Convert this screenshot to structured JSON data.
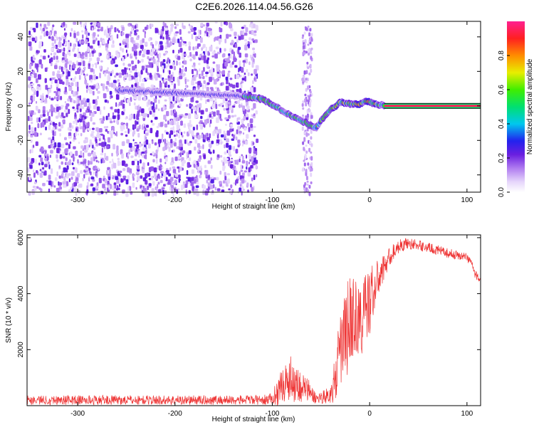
{
  "title": "C2E6.2026.114.04.56.G26",
  "colors": {
    "snr_line": "#ee3333",
    "background": "#ffffff",
    "axis": "#000000"
  },
  "chart_data": [
    {
      "type": "heatmap",
      "xlabel": "Height of straight line (km)",
      "ylabel": "Frequency (Hz)",
      "xlim": [
        -352,
        114
      ],
      "ylim": [
        -50,
        49
      ],
      "xticks": [
        -300,
        -200,
        -100,
        0,
        100
      ],
      "yticks": [
        -40,
        -20,
        0,
        20,
        40
      ],
      "colorbar": {
        "label": "Normalized spectral amplitude",
        "range": [
          0,
          1
        ],
        "ticks": [
          "0.0",
          "0.2",
          "0.4",
          "0.6",
          "0.8"
        ],
        "tick_values": [
          0.0,
          0.2,
          0.4,
          0.6,
          0.8
        ],
        "colormap": "rainbow (white-lavender-violet-blue-cyan-green-yellow-red-magenta)"
      },
      "noise_region": {
        "x_range": [
          -352,
          -117
        ],
        "amplitude_range": [
          0.05,
          0.25
        ]
      },
      "side_streak": {
        "x_range": [
          -70,
          -60
        ],
        "y_range": [
          -50,
          47
        ]
      },
      "ridge": {
        "description": "signal frequency track vs height",
        "points": [
          [
            -260,
            9
          ],
          [
            -220,
            8
          ],
          [
            -180,
            7
          ],
          [
            -140,
            6
          ],
          [
            -130,
            5.5
          ],
          [
            -110,
            4
          ],
          [
            -95,
            -1
          ],
          [
            -80,
            -6
          ],
          [
            -65,
            -10
          ],
          [
            -55,
            -13
          ],
          [
            -48,
            -7
          ],
          [
            -40,
            -2
          ],
          [
            -30,
            2
          ],
          [
            -20,
            1
          ],
          [
            -10,
            1
          ],
          [
            -3,
            3
          ],
          [
            5,
            1
          ],
          [
            15,
            0.5
          ]
        ],
        "constant_line": {
          "x_range": [
            15,
            114
          ],
          "y": 0
        }
      }
    },
    {
      "type": "line",
      "xlabel": "Height of straight line (km)",
      "ylabel": "SNR (10 * v/v)",
      "xlim": [
        -352,
        114
      ],
      "ylim": [
        0,
        6100
      ],
      "xticks": [
        -300,
        -200,
        -100,
        0,
        100
      ],
      "yticks": [
        2000,
        4000,
        6000
      ],
      "series": [
        {
          "color": "#ee3333",
          "envelope": [
            {
              "x": -352,
              "mean": 200,
              "spread": 170
            },
            {
              "x": -110,
              "mean": 200,
              "spread": 170
            },
            {
              "x": -100,
              "mean": 250,
              "spread": 200
            },
            {
              "x": -95,
              "mean": 500,
              "spread": 500
            },
            {
              "x": -85,
              "mean": 900,
              "spread": 700
            },
            {
              "x": -78,
              "mean": 1000,
              "spread": 900
            },
            {
              "x": -72,
              "mean": 700,
              "spread": 600
            },
            {
              "x": -65,
              "mean": 600,
              "spread": 500
            },
            {
              "x": -55,
              "mean": 250,
              "spread": 200
            },
            {
              "x": -40,
              "mean": 400,
              "spread": 300
            },
            {
              "x": -35,
              "mean": 1000,
              "spread": 900
            },
            {
              "x": -30,
              "mean": 2000,
              "spread": 1400
            },
            {
              "x": -22,
              "mean": 2800,
              "spread": 1800
            },
            {
              "x": -18,
              "mean": 3200,
              "spread": 1500
            },
            {
              "x": -10,
              "mean": 3000,
              "spread": 1400
            },
            {
              "x": -5,
              "mean": 3300,
              "spread": 1500
            },
            {
              "x": 0,
              "mean": 3800,
              "spread": 1300
            },
            {
              "x": 10,
              "mean": 4600,
              "spread": 600
            },
            {
              "x": 20,
              "mean": 5300,
              "spread": 350
            },
            {
              "x": 30,
              "mean": 5700,
              "spread": 250
            },
            {
              "x": 40,
              "mean": 5800,
              "spread": 200
            },
            {
              "x": 60,
              "mean": 5650,
              "spread": 180
            },
            {
              "x": 80,
              "mean": 5450,
              "spread": 170
            },
            {
              "x": 100,
              "mean": 5300,
              "spread": 160
            },
            {
              "x": 105,
              "mean": 5100,
              "spread": 150
            },
            {
              "x": 108,
              "mean": 4700,
              "spread": 150
            },
            {
              "x": 114,
              "mean": 4500,
              "spread": 120
            }
          ]
        }
      ]
    }
  ]
}
